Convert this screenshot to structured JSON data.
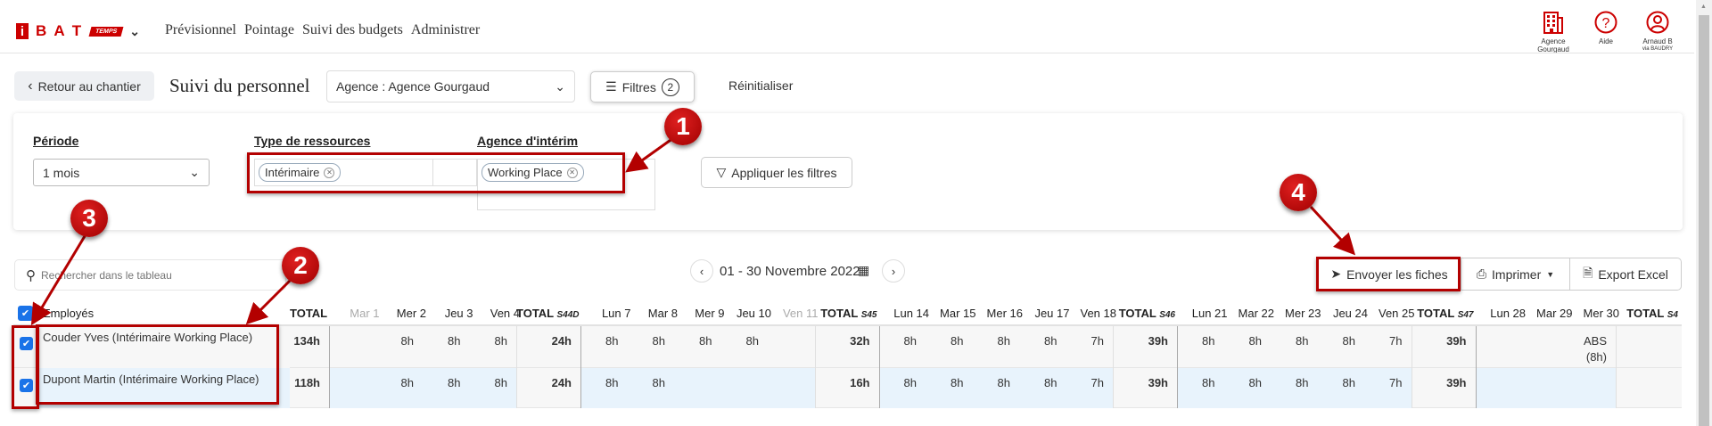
{
  "header": {
    "logo": {
      "i": "i",
      "bat": "B A T",
      "temps": "TEMPS"
    },
    "nav": [
      "Prévisionnel",
      "Pointage",
      "Suivi des budgets",
      "Administrer"
    ],
    "right": [
      {
        "icon": "building-icon",
        "line1": "Agence",
        "line2": "Gourgaud"
      },
      {
        "icon": "help-icon",
        "line1": "Aide",
        "line2": ""
      },
      {
        "icon": "user-icon",
        "line1": "Arnaud B",
        "line2": "via BAUDRY"
      }
    ]
  },
  "toolbar": {
    "back": "Retour au chantier",
    "title": "Suivi du personnel",
    "agency_select": "Agence : Agence Gourgaud",
    "filters": "Filtres",
    "filters_count": "2",
    "reset": "Réinitialiser"
  },
  "filters": {
    "period_label": "Période",
    "period_value": "1 mois",
    "type_label": "Type de ressources",
    "type_chip": "Intérimaire",
    "agency_label": "Agence d'intérim",
    "agency_chip": "Working Place",
    "apply": "Appliquer les filtres"
  },
  "table_toolbar": {
    "search_placeholder": "Rechercher dans le tableau",
    "date_range": "01 - 30 Novembre 2022",
    "send": "Envoyer les fiches",
    "print": "Imprimer",
    "export": "Export Excel"
  },
  "table": {
    "employees_header": "Employés",
    "columns": [
      {
        "label": "TOTAL",
        "type": "total"
      },
      {
        "label": "Mar 1",
        "type": "day",
        "muted": true,
        "week_start": true
      },
      {
        "label": "Mer 2",
        "type": "day"
      },
      {
        "label": "Jeu 3",
        "type": "day"
      },
      {
        "label": "Ven 4",
        "type": "day"
      },
      {
        "label": "TOTAL",
        "sub": "S44D",
        "type": "wtotal"
      },
      {
        "label": "Lun 7",
        "type": "day",
        "week_start": true
      },
      {
        "label": "Mar 8",
        "type": "day"
      },
      {
        "label": "Mer 9",
        "type": "day"
      },
      {
        "label": "Jeu 10",
        "type": "day"
      },
      {
        "label": "Ven 11",
        "type": "day",
        "muted": true
      },
      {
        "label": "TOTAL",
        "sub": "S45",
        "type": "wtotal"
      },
      {
        "label": "Lun 14",
        "type": "day",
        "week_start": true
      },
      {
        "label": "Mar 15",
        "type": "day"
      },
      {
        "label": "Mer 16",
        "type": "day"
      },
      {
        "label": "Jeu 17",
        "type": "day"
      },
      {
        "label": "Ven 18",
        "type": "day"
      },
      {
        "label": "TOTAL",
        "sub": "S46",
        "type": "wtotal"
      },
      {
        "label": "Lun 21",
        "type": "day",
        "week_start": true
      },
      {
        "label": "Mar 22",
        "type": "day"
      },
      {
        "label": "Mer 23",
        "type": "day"
      },
      {
        "label": "Jeu 24",
        "type": "day"
      },
      {
        "label": "Ven 25",
        "type": "day"
      },
      {
        "label": "TOTAL",
        "sub": "S47",
        "type": "wtotal"
      },
      {
        "label": "Lun 28",
        "type": "day",
        "week_start": true
      },
      {
        "label": "Mar 29",
        "type": "day"
      },
      {
        "label": "Mer 30",
        "type": "day"
      },
      {
        "label": "TOTAL",
        "sub": "S4",
        "type": "wtotal"
      }
    ],
    "rows": [
      {
        "name": "Couder Yves (Intérimaire Working Place)",
        "checked": true,
        "highlight": false,
        "cells": [
          "134h",
          "",
          "8h",
          "8h",
          "8h",
          "24h",
          "8h",
          "8h",
          "8h",
          "8h",
          "",
          "32h",
          "8h",
          "8h",
          "8h",
          "8h",
          "7h",
          "39h",
          "8h",
          "8h",
          "8h",
          "8h",
          "7h",
          "39h",
          "",
          "",
          "ABS\n(8h)",
          ""
        ]
      },
      {
        "name": "Dupont Martin (Intérimaire Working Place)",
        "checked": true,
        "highlight": true,
        "cells": [
          "118h",
          "",
          "8h",
          "8h",
          "8h",
          "24h",
          "8h",
          "8h",
          "",
          "",
          "",
          "16h",
          "8h",
          "8h",
          "8h",
          "8h",
          "7h",
          "39h",
          "8h",
          "8h",
          "8h",
          "8h",
          "7h",
          "39h",
          "",
          "",
          "",
          ""
        ]
      }
    ]
  },
  "annotations": [
    "1",
    "2",
    "3",
    "4"
  ],
  "colors": {
    "brand": "#cc0000",
    "annotation": "#b30000",
    "checkbox": "#1a73e8",
    "row_highlight": "#e8f3fc",
    "row_default": "#f7f7f7"
  }
}
